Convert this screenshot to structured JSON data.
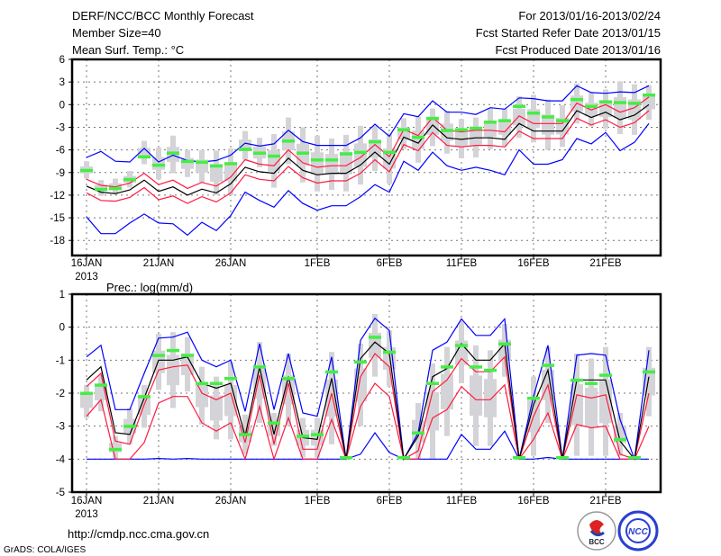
{
  "header": {
    "title": "DERF/NCC/BCC Monthly Forecast",
    "member_size": "Member Size=40",
    "variable": "Mean Surf. Temp.: °C",
    "period": "For 2013/01/16-2013/02/24",
    "refer_date": "Fcst Started Refer Date 2013/01/15",
    "produced_date": "Fcst Produced Date 2013/01/16"
  },
  "footer": {
    "url": "http://cmdp.ncc.cma.gov.cn",
    "credit": "GrADS: COLA/IGES",
    "logos": [
      "BCC",
      "NCC"
    ]
  },
  "colors": {
    "envelope": "#0000ff",
    "spread": "#ff1a40",
    "mean": "#000000",
    "obs": "#44ee44",
    "box": "#d4d4d8"
  },
  "chart_data": [
    {
      "type": "line",
      "title": "Mean Surf. Temp.: °C",
      "x_start": "16JAN 2013",
      "days": 40,
      "xticks": [
        {
          "day": 0,
          "label": "16JAN",
          "sub": "2013"
        },
        {
          "day": 5,
          "label": "21JAN"
        },
        {
          "day": 10,
          "label": "26JAN"
        },
        {
          "day": 16,
          "label": "1FEB"
        },
        {
          "day": 21,
          "label": "6FEB"
        },
        {
          "day": 26,
          "label": "11FEB"
        },
        {
          "day": 31,
          "label": "16FEB"
        },
        {
          "day": 36,
          "label": "21FEB"
        }
      ],
      "yticks": [
        "6",
        "3",
        "0",
        "-3",
        "-6",
        "-9",
        "-12",
        "-15",
        "-18"
      ],
      "ytick_values": [
        6,
        3,
        0,
        -3,
        -6,
        -9,
        -12,
        -15,
        -18
      ],
      "ylim": [
        -20,
        6
      ],
      "grid": true,
      "series": [
        {
          "name": "max",
          "color": "blue",
          "values": [
            -7.0,
            -6.2,
            -7.5,
            -7.6,
            -5.8,
            -7.6,
            -6.7,
            -7.4,
            -7.6,
            -7.4,
            -6.7,
            -5.1,
            -5.5,
            -5.2,
            -3.4,
            -4.9,
            -5.4,
            -5.4,
            -5.4,
            -4.4,
            -2.6,
            -4.2,
            -1.2,
            -1.6,
            0.5,
            -1.0,
            -1.0,
            -1.3,
            -0.4,
            -0.6,
            0.9,
            0.8,
            0.5,
            0.5,
            2.5,
            1.6,
            1.5,
            1.7,
            1.6,
            2.5
          ]
        },
        {
          "name": "min",
          "color": "blue",
          "values": [
            -14.9,
            -17.1,
            -17.1,
            -15.7,
            -14.5,
            -15.7,
            -15.8,
            -17.3,
            -15.6,
            -16.7,
            -14.7,
            -11.6,
            -12.7,
            -13.6,
            -11.4,
            -13.1,
            -14.0,
            -13.4,
            -13.4,
            -12.2,
            -10.6,
            -11.6,
            -7.5,
            -8.7,
            -6.3,
            -8.1,
            -8.7,
            -8.3,
            -8.7,
            -9.3,
            -6.0,
            -7.9,
            -7.9,
            -7.3,
            -4.5,
            -5.2,
            -3.7,
            -6.1,
            -5.0,
            -2.5
          ]
        },
        {
          "name": "upper",
          "color": "red",
          "values": [
            -9.9,
            -10.7,
            -10.9,
            -10.4,
            -9.1,
            -10.6,
            -10.0,
            -11.1,
            -10.3,
            -10.8,
            -9.6,
            -7.3,
            -7.9,
            -8.1,
            -6.0,
            -7.7,
            -8.3,
            -8.1,
            -8.1,
            -7.0,
            -5.3,
            -6.9,
            -3.3,
            -4.1,
            -1.7,
            -3.4,
            -3.6,
            -3.4,
            -3.4,
            -3.6,
            -1.5,
            -2.5,
            -2.5,
            -2.5,
            0.2,
            -0.7,
            0.0,
            -1.0,
            -0.4,
            1.0
          ]
        },
        {
          "name": "lower",
          "color": "red",
          "values": [
            -11.7,
            -12.7,
            -12.8,
            -12.3,
            -11.0,
            -12.6,
            -12.1,
            -13.1,
            -12.2,
            -12.9,
            -11.7,
            -9.3,
            -9.9,
            -10.1,
            -8.2,
            -9.7,
            -10.4,
            -10.1,
            -10.1,
            -9.1,
            -7.3,
            -8.9,
            -5.3,
            -6.1,
            -3.7,
            -5.4,
            -5.6,
            -5.4,
            -5.4,
            -5.6,
            -3.5,
            -4.5,
            -4.5,
            -4.5,
            -1.8,
            -2.7,
            -2.0,
            -3.0,
            -2.4,
            -0.8
          ]
        },
        {
          "name": "mean",
          "color": "black",
          "values": [
            -10.8,
            -11.6,
            -11.8,
            -11.3,
            -10.0,
            -11.5,
            -10.9,
            -12.0,
            -11.2,
            -11.7,
            -10.5,
            -8.3,
            -8.9,
            -9.1,
            -7.1,
            -8.7,
            -9.3,
            -9.1,
            -9.1,
            -8.0,
            -6.3,
            -7.9,
            -4.3,
            -5.1,
            -2.7,
            -4.4,
            -4.6,
            -4.4,
            -4.4,
            -4.6,
            -2.5,
            -3.5,
            -3.5,
            -3.5,
            -0.8,
            -1.7,
            -1.0,
            -2.0,
            -1.4,
            0.0
          ]
        }
      ],
      "box_high": [
        -7.5,
        -10.0,
        -9.8,
        -8.8,
        -4.8,
        -5.7,
        -4.1,
        -6.0,
        -6.0,
        -6.1,
        -5.8,
        -3.5,
        -4.4,
        -3.9,
        -1.7,
        -3.0,
        -4.1,
        -4.5,
        -4.0,
        -2.8,
        -2.8,
        -3.8,
        -1.8,
        -1.6,
        -0.5,
        -0.8,
        -1.9,
        -1.7,
        -0.5,
        -0.5,
        1.1,
        1.3,
        0.7,
        -0.1,
        2.8,
        1.6,
        2.0,
        3.1,
        2.7,
        2.6
      ],
      "box_low": [
        -9.8,
        -12.1,
        -11.9,
        -11.0,
        -7.9,
        -9.9,
        -9.1,
        -9.6,
        -10.3,
        -12.0,
        -12.0,
        -7.3,
        -8.3,
        -11.0,
        -7.9,
        -10.3,
        -11.5,
        -11.3,
        -11.5,
        -10.6,
        -8.8,
        -10.5,
        -5.9,
        -7.7,
        -5.5,
        -6.5,
        -7.1,
        -7.0,
        -5.9,
        -5.5,
        -4.4,
        -5.0,
        -6.0,
        -5.6,
        -2.5,
        -2.9,
        -3.2,
        -3.9,
        -4.0,
        -2.0
      ],
      "observed": [
        -8.7,
        -11.2,
        -11.1,
        -9.9,
        -6.9,
        -8.0,
        -6.4,
        -7.5,
        -7.6,
        -8.1,
        -7.8,
        -5.9,
        -6.4,
        -6.8,
        -4.8,
        -6.4,
        -7.3,
        -7.3,
        -6.5,
        -6.3,
        -4.9,
        -6.3,
        -3.3,
        -4.3,
        -1.8,
        -3.4,
        -3.3,
        -3.1,
        -2.3,
        -2.1,
        -0.2,
        -1.1,
        -1.6,
        -2.1,
        0.7,
        -0.2,
        0.4,
        0.3,
        0.2,
        1.3
      ]
    },
    {
      "type": "line",
      "title": "Prec.: log(mm/d)",
      "x_start": "16JAN 2013",
      "days": 40,
      "xticks": [
        {
          "day": 0,
          "label": "16JAN",
          "sub": "2013"
        },
        {
          "day": 5,
          "label": "21JAN"
        },
        {
          "day": 10,
          "label": "26JAN"
        },
        {
          "day": 16,
          "label": "1FEB"
        },
        {
          "day": 21,
          "label": "6FEB"
        },
        {
          "day": 26,
          "label": "11FEB"
        },
        {
          "day": 31,
          "label": "16FEB"
        },
        {
          "day": 36,
          "label": "21FEB"
        }
      ],
      "yticks": [
        "1",
        "0",
        "-1",
        "-2",
        "-3",
        "-4",
        "-5"
      ],
      "ytick_values": [
        1,
        0,
        -1,
        -2,
        -3,
        -4,
        -5
      ],
      "ylim": [
        -5,
        1
      ],
      "grid": true,
      "series": [
        {
          "name": "max",
          "color": "blue",
          "values": [
            -0.9,
            -0.55,
            -2.5,
            -2.5,
            -1.4,
            -0.33,
            -0.3,
            -0.15,
            -1.0,
            -1.2,
            -1.0,
            -2.55,
            -0.5,
            -2.5,
            -0.8,
            -2.6,
            -2.7,
            -0.9,
            -4.0,
            -0.4,
            0.27,
            -0.1,
            -4.0,
            -3.2,
            -0.7,
            -0.45,
            0.25,
            -0.25,
            -0.25,
            0.25,
            -4.0,
            -2.1,
            -0.55,
            -4.0,
            -0.85,
            -0.8,
            -0.85,
            -2.8,
            -4.0,
            -0.7
          ]
        },
        {
          "name": "min",
          "color": "blue",
          "values": [
            -4,
            -4,
            -4,
            -4,
            -4,
            -3.98,
            -4,
            -3.98,
            -4,
            -4,
            -4,
            -4,
            -4,
            -4,
            -4,
            -4,
            -4,
            -4,
            -4,
            -3.85,
            -3.2,
            -3.8,
            -4,
            -4,
            -4,
            -4,
            -3.25,
            -3.7,
            -3.7,
            -3.15,
            -4,
            -4,
            -3.95,
            -4,
            -4,
            -4,
            -4,
            -4,
            -4,
            -4
          ]
        },
        {
          "name": "upper",
          "color": "red",
          "values": [
            -1.8,
            -1.4,
            -3.45,
            -3.55,
            -2.35,
            -1.3,
            -1.2,
            -1.15,
            -2.0,
            -2.2,
            -2.0,
            -3.5,
            -1.45,
            -3.55,
            -1.7,
            -3.7,
            -3.7,
            -2.0,
            -4.0,
            -1.5,
            -0.8,
            -1.2,
            -4.0,
            -3.75,
            -1.95,
            -1.6,
            -0.95,
            -1.35,
            -1.35,
            -0.9,
            -4.0,
            -2.7,
            -1.75,
            -4.0,
            -2.05,
            -2.15,
            -2.05,
            -3.85,
            -4.0,
            -2.0
          ]
        },
        {
          "name": "lower",
          "color": "red",
          "values": [
            -2.7,
            -2.2,
            -4.0,
            -4.0,
            -3.5,
            -2.3,
            -2.1,
            -2.1,
            -2.9,
            -3.15,
            -2.9,
            -4.0,
            -2.4,
            -4.0,
            -2.75,
            -4.0,
            -4.0,
            -2.8,
            -4.0,
            -2.4,
            -1.7,
            -2.1,
            -4.0,
            -4.0,
            -2.75,
            -2.5,
            -1.8,
            -2.2,
            -2.2,
            -1.75,
            -4.0,
            -3.4,
            -2.6,
            -4.0,
            -2.95,
            -3.05,
            -3.0,
            -4.0,
            -4.0,
            -3.0
          ]
        },
        {
          "name": "mean",
          "color": "black",
          "values": [
            -1.6,
            -1.2,
            -3.2,
            -3.25,
            -2.15,
            -1.0,
            -1.0,
            -0.9,
            -1.7,
            -1.85,
            -1.7,
            -3.3,
            -1.2,
            -3.25,
            -1.5,
            -3.35,
            -3.4,
            -1.55,
            -4.0,
            -0.95,
            -0.45,
            -0.8,
            -4.0,
            -3.3,
            -1.5,
            -1.25,
            -0.5,
            -1.0,
            -1.0,
            -0.5,
            -4.0,
            -2.35,
            -1.3,
            -4.0,
            -1.6,
            -1.6,
            -1.6,
            -3.45,
            -4.0,
            -1.5
          ]
        }
      ],
      "box_high": [
        -1.75,
        -1.45,
        -3.3,
        -2.45,
        -1.75,
        -0.2,
        -0.15,
        -0.3,
        -1.2,
        -1.5,
        -1.05,
        -2.65,
        -0.45,
        -2.6,
        -0.8,
        -2.75,
        -2.75,
        -0.75,
        -3.9,
        -0.5,
        0.4,
        -0.1,
        -3.9,
        -2.3,
        -1.1,
        -0.6,
        0.15,
        -0.55,
        -0.7,
        0.1,
        -3.9,
        -1.5,
        -0.6,
        -3.9,
        -0.8,
        -0.95,
        -0.6,
        -2.6,
        -3.9,
        -0.6
      ],
      "box_low": [
        -2.75,
        -2.55,
        -4,
        -3.55,
        -3.05,
        -1.9,
        -2.45,
        -1.95,
        -2.95,
        -3.4,
        -3.4,
        -3.85,
        -2.9,
        -3.6,
        -3.0,
        -3.95,
        -3.95,
        -3.55,
        -4,
        -3.0,
        -1.5,
        -1.8,
        -4,
        -4,
        -4,
        -3.3,
        -1.7,
        -3.6,
        -3.6,
        -1.5,
        -4,
        -3.9,
        -2.9,
        -4,
        -3.9,
        -3.9,
        -3.9,
        -3.9,
        -4,
        -2.7
      ],
      "observed": [
        -2.0,
        -1.75,
        -3.7,
        -3.0,
        -2.1,
        -0.85,
        -0.7,
        -0.85,
        -1.7,
        -1.7,
        -1.55,
        -3.25,
        -1.2,
        -2.9,
        -1.55,
        -3.3,
        -3.25,
        -1.35,
        -3.95,
        -1.05,
        -0.3,
        -0.75,
        -3.95,
        -3.2,
        -1.7,
        -1.2,
        -0.55,
        -1.2,
        -1.3,
        -0.5,
        -3.95,
        -2.15,
        -1.15,
        -3.95,
        -1.6,
        -1.7,
        -1.45,
        -3.4,
        -3.95,
        -1.35
      ]
    }
  ]
}
